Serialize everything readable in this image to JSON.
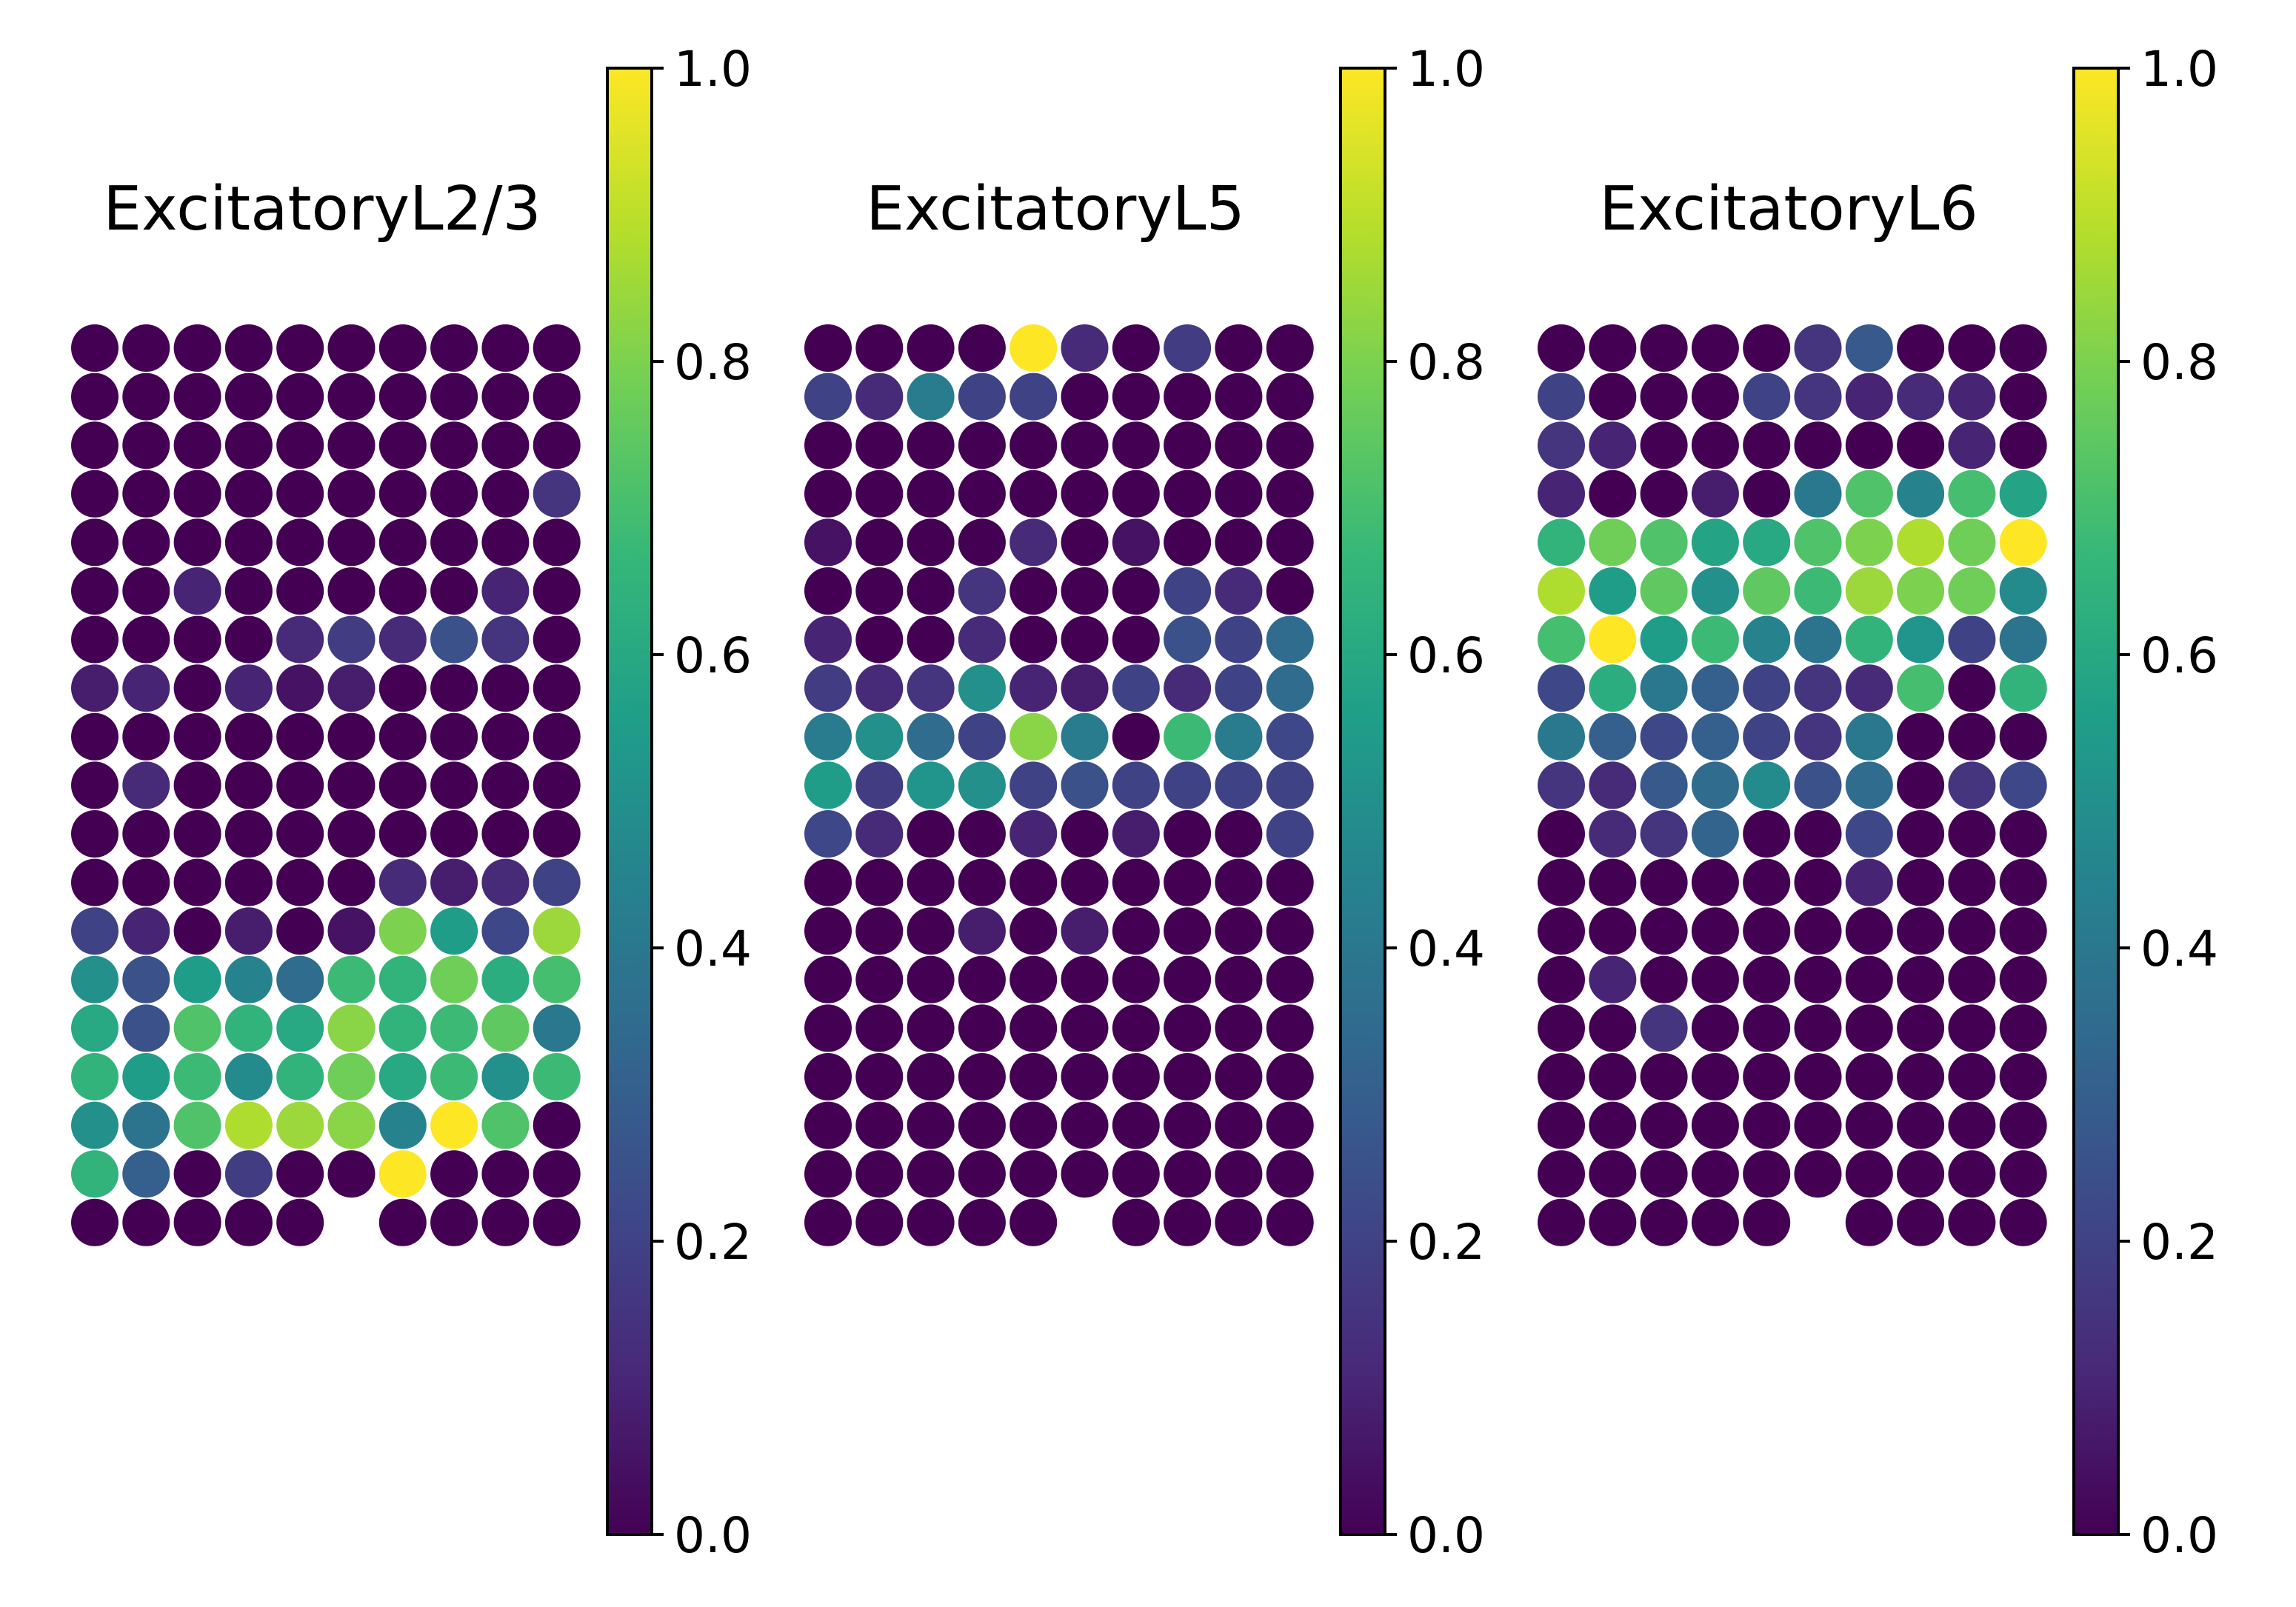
{
  "chart_data": [
    {
      "type": "scatter",
      "title": "ExcitatoryL2/3",
      "xlabel": "",
      "ylabel": "",
      "grid": false,
      "colorscale": "viridis",
      "colorbar": {
        "range": [
          0.0,
          1.0
        ],
        "ticks": [
          "0.0",
          "0.2",
          "0.4",
          "0.6",
          "0.8",
          "1.0"
        ]
      },
      "columns": 10,
      "missing_spots": [
        [
          18,
          5
        ]
      ],
      "grid_values": [
        [
          0,
          0,
          0,
          0,
          0,
          0,
          0,
          0,
          0,
          0
        ],
        [
          0,
          0,
          0,
          0,
          0,
          0,
          0,
          0,
          0,
          0
        ],
        [
          0,
          0,
          0,
          0,
          0,
          0,
          0,
          0,
          0,
          0
        ],
        [
          0,
          0,
          0,
          0,
          0,
          0,
          0,
          0,
          0,
          0.15
        ],
        [
          0,
          0,
          0,
          0,
          0,
          0,
          0,
          0,
          0,
          0
        ],
        [
          0,
          0,
          0.1,
          0,
          0,
          0,
          0,
          0,
          0.1,
          0
        ],
        [
          0,
          0,
          0,
          0,
          0.12,
          0.18,
          0.12,
          0.25,
          0.15,
          0
        ],
        [
          0.08,
          0.1,
          0,
          0.1,
          0.05,
          0.08,
          0,
          0,
          0,
          0
        ],
        [
          0,
          0,
          0,
          0,
          0,
          0,
          0,
          0,
          0,
          0
        ],
        [
          0,
          0.12,
          0,
          0,
          0,
          0,
          0,
          0,
          0,
          0
        ],
        [
          0,
          0,
          0,
          0,
          0,
          0,
          0,
          0,
          0,
          0
        ],
        [
          0,
          0,
          0,
          0,
          0,
          0,
          0.12,
          0.08,
          0.12,
          0.2
        ],
        [
          0.2,
          0.1,
          0,
          0.08,
          0,
          0.05,
          0.8,
          0.55,
          0.22,
          0.85
        ],
        [
          0.5,
          0.25,
          0.55,
          0.45,
          0.35,
          0.68,
          0.65,
          0.78,
          0.62,
          0.7
        ],
        [
          0.6,
          0.25,
          0.72,
          0.65,
          0.6,
          0.82,
          0.65,
          0.68,
          0.75,
          0.4
        ],
        [
          0.65,
          0.55,
          0.68,
          0.48,
          0.65,
          0.78,
          0.6,
          0.68,
          0.5,
          0.68
        ],
        [
          0.5,
          0.38,
          0.72,
          0.88,
          0.85,
          0.82,
          0.45,
          1.0,
          0.72,
          0
        ],
        [
          0.65,
          0.3,
          0,
          0.18,
          0,
          0,
          1.0,
          0,
          0,
          0
        ],
        [
          0,
          0,
          0,
          0,
          0,
          null,
          0,
          0,
          0,
          0
        ]
      ]
    },
    {
      "type": "scatter",
      "title": "ExcitatoryL5",
      "xlabel": "",
      "ylabel": "",
      "grid": false,
      "colorscale": "viridis",
      "colorbar": {
        "range": [
          0.0,
          1.0
        ],
        "ticks": [
          "0.0",
          "0.2",
          "0.4",
          "0.6",
          "0.8",
          "1.0"
        ]
      },
      "columns": 10,
      "missing_spots": [
        [
          18,
          5
        ]
      ],
      "grid_values": [
        [
          0,
          0,
          0,
          0,
          1.0,
          0.12,
          0,
          0.18,
          0,
          0
        ],
        [
          0.2,
          0.12,
          0.42,
          0.2,
          0.2,
          0,
          0,
          0,
          0,
          0
        ],
        [
          0,
          0,
          0,
          0,
          0,
          0,
          0,
          0,
          0,
          0
        ],
        [
          0,
          0,
          0,
          0,
          0,
          0,
          0,
          0,
          0,
          0
        ],
        [
          0.05,
          0,
          0,
          0,
          0.12,
          0,
          0.05,
          0,
          0,
          0
        ],
        [
          0,
          0,
          0,
          0.15,
          0,
          0,
          0,
          0.2,
          0.12,
          0
        ],
        [
          0.1,
          0,
          0,
          0.12,
          0,
          0,
          0,
          0.25,
          0.2,
          0.35
        ],
        [
          0.18,
          0.12,
          0.15,
          0.5,
          0.1,
          0.08,
          0.2,
          0.12,
          0.2,
          0.35
        ],
        [
          0.42,
          0.5,
          0.35,
          0.2,
          0.82,
          0.42,
          0,
          0.68,
          0.42,
          0.22
        ],
        [
          0.55,
          0.18,
          0.52,
          0.5,
          0.2,
          0.25,
          0.2,
          0.2,
          0.2,
          0.2
        ],
        [
          0.22,
          0.12,
          0,
          0,
          0.1,
          0,
          0.08,
          0,
          0,
          0.2
        ],
        [
          0,
          0,
          0,
          0,
          0,
          0,
          0,
          0,
          0,
          0
        ],
        [
          0,
          0,
          0,
          0.08,
          0,
          0.08,
          0,
          0,
          0,
          0
        ],
        [
          0,
          0,
          0,
          0,
          0,
          0,
          0,
          0,
          0,
          0
        ],
        [
          0,
          0,
          0,
          0,
          0,
          0,
          0,
          0,
          0,
          0
        ],
        [
          0,
          0,
          0,
          0,
          0,
          0,
          0,
          0,
          0,
          0
        ],
        [
          0,
          0,
          0,
          0,
          0,
          0,
          0,
          0,
          0,
          0
        ],
        [
          0,
          0,
          0,
          0,
          0,
          0,
          0,
          0,
          0,
          0
        ],
        [
          0,
          0,
          0,
          0,
          0,
          null,
          0,
          0,
          0,
          0
        ]
      ]
    },
    {
      "type": "scatter",
      "title": "ExcitatoryL6",
      "xlabel": "",
      "ylabel": "",
      "grid": false,
      "colorscale": "viridis",
      "colorbar": {
        "range": [
          0.0,
          1.0
        ],
        "ticks": [
          "0.0",
          "0.2",
          "0.4",
          "0.6",
          "0.8",
          "1.0"
        ]
      },
      "columns": 10,
      "missing_spots": [
        [
          18,
          5
        ]
      ],
      "grid_values": [
        [
          0,
          0,
          0,
          0,
          0,
          0.15,
          0.28,
          0,
          0,
          0
        ],
        [
          0.2,
          0,
          0,
          0,
          0.2,
          0.15,
          0.1,
          0.12,
          0.1,
          0
        ],
        [
          0.15,
          0.1,
          0,
          0,
          0,
          0,
          0,
          0,
          0.1,
          0
        ],
        [
          0.1,
          0,
          0,
          0.08,
          0,
          0.4,
          0.72,
          0.45,
          0.7,
          0.58
        ],
        [
          0.65,
          0.78,
          0.72,
          0.58,
          0.6,
          0.72,
          0.8,
          0.88,
          0.78,
          1.0
        ],
        [
          0.88,
          0.55,
          0.75,
          0.5,
          0.75,
          0.68,
          0.85,
          0.8,
          0.78,
          0.48
        ],
        [
          0.7,
          1.0,
          0.55,
          0.68,
          0.45,
          0.38,
          0.65,
          0.52,
          0.2,
          0.38
        ],
        [
          0.22,
          0.62,
          0.4,
          0.3,
          0.2,
          0.15,
          0.12,
          0.7,
          0,
          0.65
        ],
        [
          0.4,
          0.3,
          0.22,
          0.3,
          0.2,
          0.15,
          0.4,
          0,
          0,
          0
        ],
        [
          0.15,
          0.12,
          0.28,
          0.35,
          0.48,
          0.25,
          0.35,
          0,
          0.15,
          0.22
        ],
        [
          0,
          0.12,
          0.15,
          0.32,
          0,
          0,
          0.22,
          0,
          0,
          0
        ],
        [
          0,
          0,
          0,
          0,
          0,
          0,
          0.1,
          0,
          0,
          0
        ],
        [
          0,
          0,
          0,
          0,
          0,
          0,
          0,
          0,
          0,
          0
        ],
        [
          0,
          0.1,
          0,
          0,
          0,
          0,
          0,
          0,
          0,
          0
        ],
        [
          0,
          0,
          0.15,
          0,
          0,
          0,
          0,
          0,
          0,
          0
        ],
        [
          0,
          0,
          0,
          0,
          0,
          0,
          0,
          0,
          0,
          0
        ],
        [
          0,
          0,
          0,
          0,
          0,
          0,
          0,
          0,
          0,
          0
        ],
        [
          0,
          0,
          0,
          0,
          0,
          0,
          0,
          0,
          0,
          0
        ],
        [
          0,
          0,
          0,
          0,
          0,
          null,
          0,
          0,
          0,
          0
        ]
      ]
    }
  ],
  "colors": {
    "viridis_stops": [
      "#440154",
      "#482878",
      "#3e4989",
      "#31688e",
      "#26828e",
      "#1f9e89",
      "#35b779",
      "#6ece58",
      "#b5de2b",
      "#fde725"
    ]
  }
}
